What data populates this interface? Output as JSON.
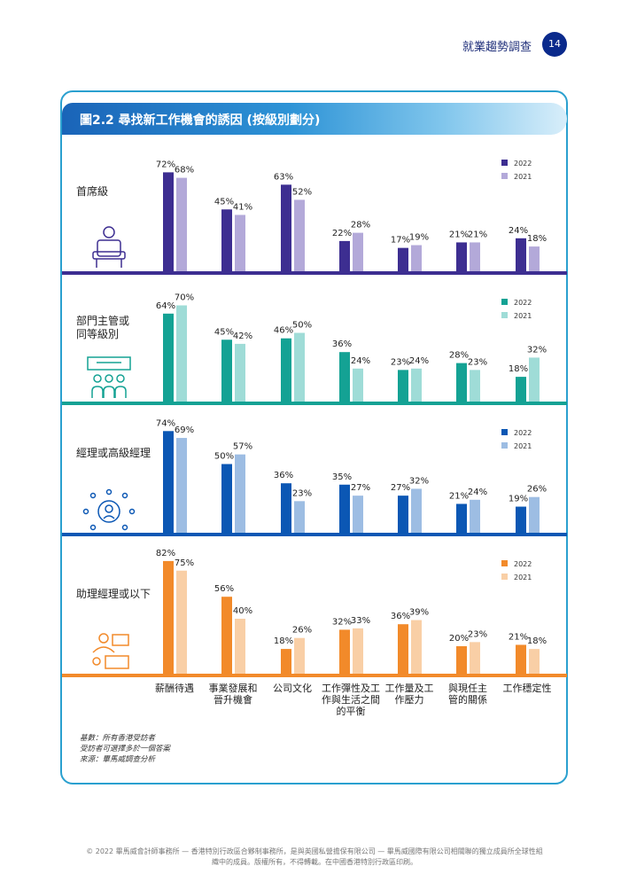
{
  "header": {
    "title": "就業趨勢調查",
    "page_number": "14"
  },
  "figure_title": "圖2.2 尋找新工作機會的誘因 (按級別劃分)",
  "notes": {
    "base": "基數：所有香港受訪者",
    "multi": "受訪者可選擇多於一個答案",
    "source": "來源：畢馬威調查分析"
  },
  "footer": {
    "line1": "© 2022 畢馬威會計師事務所 — 香港特別行政區合夥制事務所，是與英國私營擔保有限公司 — 畢馬威國際有限公司相關聯的獨立成員所全球性組",
    "line2": "織中的成員。版權所有，不得轉載。在中國香港特別行政區印刷。"
  },
  "chart_data": {
    "type": "bar",
    "categories": [
      [
        "薪酬待遇"
      ],
      [
        "事業發展和",
        "晉升機會"
      ],
      [
        "公司文化"
      ],
      [
        "工作彈性及工",
        "作與生活之間",
        "的平衡"
      ],
      [
        "工作量及工",
        "作壓力"
      ],
      [
        "與現任主",
        "管的關係"
      ],
      [
        "工作穩定性"
      ]
    ],
    "panels": [
      {
        "group": [
          "首席級"
        ],
        "icon": "executive-chair-icon",
        "colors": {
          "2022": "#3d2e91",
          "2021": "#b3a9d9"
        },
        "series": [
          {
            "name": "2022",
            "values": [
              72,
              45,
              63,
              22,
              17,
              21,
              24
            ]
          },
          {
            "name": "2021",
            "values": [
              68,
              41,
              52,
              28,
              19,
              21,
              18
            ]
          }
        ]
      },
      {
        "group": [
          "部門主管或",
          "同等級別"
        ],
        "icon": "department-meeting-icon",
        "colors": {
          "2022": "#14a294",
          "2021": "#9fdcd7"
        },
        "series": [
          {
            "name": "2022",
            "values": [
              64,
              45,
              46,
              36,
              23,
              28,
              18
            ]
          },
          {
            "name": "2021",
            "values": [
              70,
              42,
              50,
              24,
              24,
              23,
              32
            ]
          }
        ]
      },
      {
        "group": [
          "經理或高級經理"
        ],
        "icon": "manager-network-icon",
        "colors": {
          "2022": "#0b57b4",
          "2021": "#9dbde3"
        },
        "series": [
          {
            "name": "2022",
            "values": [
              74,
              50,
              36,
              35,
              27,
              21,
              19
            ]
          },
          {
            "name": "2021",
            "values": [
              69,
              57,
              23,
              27,
              32,
              24,
              26
            ]
          }
        ]
      },
      {
        "group": [
          "助理經理或以下"
        ],
        "icon": "assistant-desk-icon",
        "colors": {
          "2022": "#f28a2a",
          "2021": "#f9cfa6"
        },
        "series": [
          {
            "name": "2022",
            "values": [
              82,
              56,
              18,
              32,
              36,
              20,
              21
            ]
          },
          {
            "name": "2021",
            "values": [
              75,
              40,
              26,
              33,
              39,
              23,
              18
            ]
          }
        ]
      }
    ],
    "value_suffix": "%",
    "ylim": [
      0,
      100
    ]
  }
}
